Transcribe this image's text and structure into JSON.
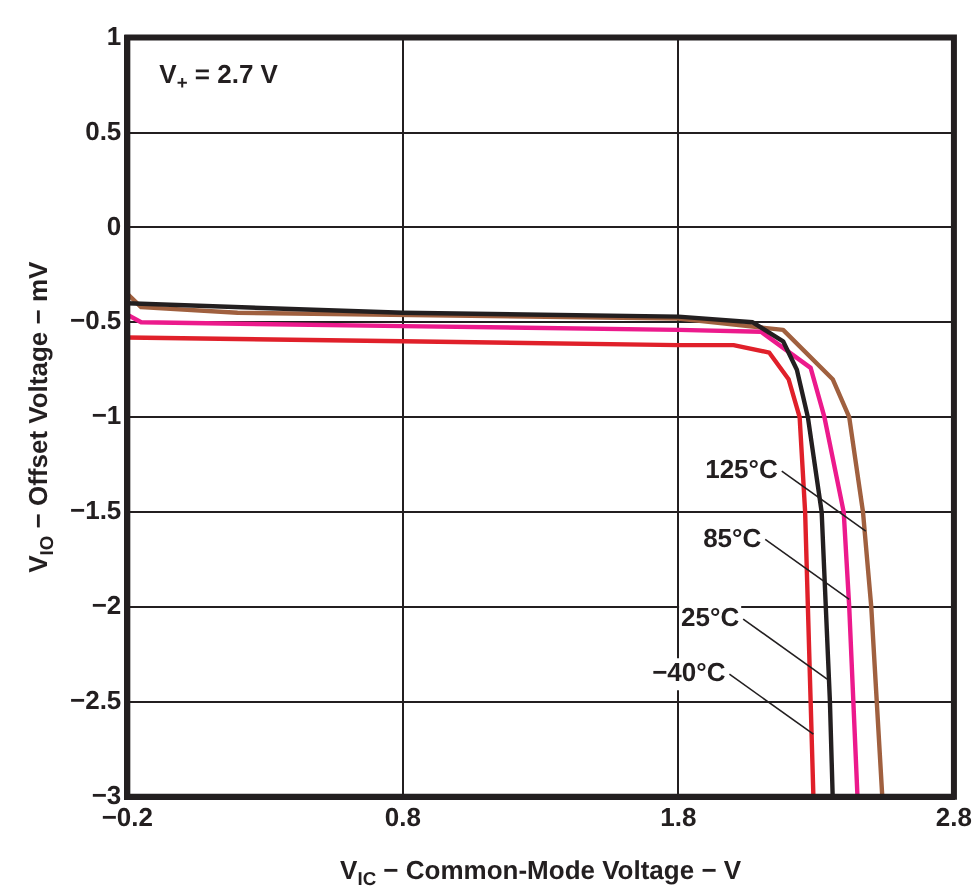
{
  "chart_data": {
    "type": "line",
    "xlabel": "V$_{IC}$ − Common-Mode Voltage − V",
    "ylabel": "V$_{IO}$ − Offset Voltage − mV",
    "xlim": [
      -0.2,
      2.8
    ],
    "xticks": [
      {
        "value": -0.2,
        "label": "−0.2"
      },
      0.8,
      1.8,
      2.8
    ],
    "ylim": [
      -3,
      1
    ],
    "yticks": [
      {
        "value": -3,
        "label": "−3"
      },
      {
        "value": -2.5,
        "label": "−2.5"
      },
      {
        "value": -2,
        "label": "−2"
      },
      {
        "value": -1.5,
        "label": "−1.5"
      },
      {
        "value": -1,
        "label": "−1"
      },
      {
        "value": -0.5,
        "label": "−0.5"
      },
      0,
      0.5,
      1
    ],
    "grid": true,
    "legend": false,
    "marker": "none",
    "line_style": "solid",
    "series": [
      {
        "color": "#e0202a",
        "x": [
          -0.2,
          0.8,
          1.8,
          2.0,
          2.13,
          2.2,
          2.24,
          2.26,
          2.28,
          2.29
        ],
        "values": [
          -0.58,
          -0.6,
          -0.62,
          -0.62,
          -0.66,
          -0.8,
          -1,
          -1.5,
          -2.5,
          -3
        ]
      },
      {
        "color": "#231f20",
        "x": [
          -0.2,
          0.8,
          1.8,
          2.07,
          2.18,
          2.23,
          2.27,
          2.32,
          2.35,
          2.36
        ],
        "values": [
          -0.4,
          -0.45,
          -0.47,
          -0.5,
          -0.6,
          -0.75,
          -1,
          -1.5,
          -2.5,
          -3
        ]
      },
      {
        "color": "#ec1a8c",
        "x": [
          -0.2,
          -0.15,
          0.8,
          1.8,
          2.1,
          2.28,
          2.33,
          2.4,
          2.42,
          2.45
        ],
        "values": [
          -0.46,
          -0.5,
          -0.52,
          -0.54,
          -0.55,
          -0.74,
          -1,
          -1.5,
          -2,
          -3
        ]
      },
      {
        "color": "#a0603f",
        "x": [
          -0.2,
          -0.15,
          0.2,
          1.8,
          2.18,
          2.36,
          2.42,
          2.47,
          2.5,
          2.54
        ],
        "values": [
          -0.35,
          -0.42,
          -0.45,
          -0.48,
          -0.54,
          -0.8,
          -1,
          -1.5,
          -2,
          -3
        ]
      }
    ],
    "annotations": [
      "V$_{+}$ = 2.7 V",
      {
        "text": "125°C",
        "x": 2.48,
        "y": -1.6
      },
      {
        "text": "85°C",
        "x": 2.42,
        "y": -1.96
      },
      {
        "text": "25°C",
        "x": 2.34,
        "y": -2.38
      },
      {
        "text": "−40°C",
        "x": 2.29,
        "y": -2.67
      }
    ]
  }
}
